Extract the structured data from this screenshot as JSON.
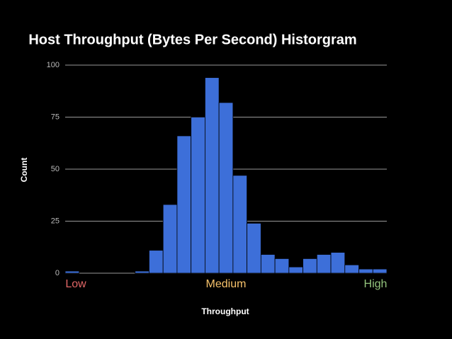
{
  "chart_data": {
    "type": "bar",
    "title": "Host Throughput (Bytes Per Second) Historgram",
    "x_label": "Throughput",
    "y_label": "Count",
    "categories": [
      null,
      null,
      null,
      null,
      null,
      null,
      null,
      null,
      null,
      null,
      null,
      null,
      null,
      null,
      null,
      null,
      null,
      null,
      null,
      null,
      null,
      null,
      null
    ],
    "values": [
      1,
      0,
      0,
      0,
      0,
      1,
      11,
      33,
      66,
      75,
      94,
      82,
      47,
      24,
      9,
      7,
      3,
      7,
      9,
      10,
      4,
      2,
      2
    ],
    "color": "#3d6fd9",
    "ylim": [
      0,
      100
    ],
    "yticks": [
      0,
      25,
      50,
      75,
      100
    ],
    "grid": true,
    "annotations": [
      {
        "text": "Low",
        "color": "#e06666"
      },
      {
        "text": "Medium",
        "color": "#f6c26b"
      },
      {
        "text": "High",
        "color": "#93c47d"
      }
    ]
  }
}
